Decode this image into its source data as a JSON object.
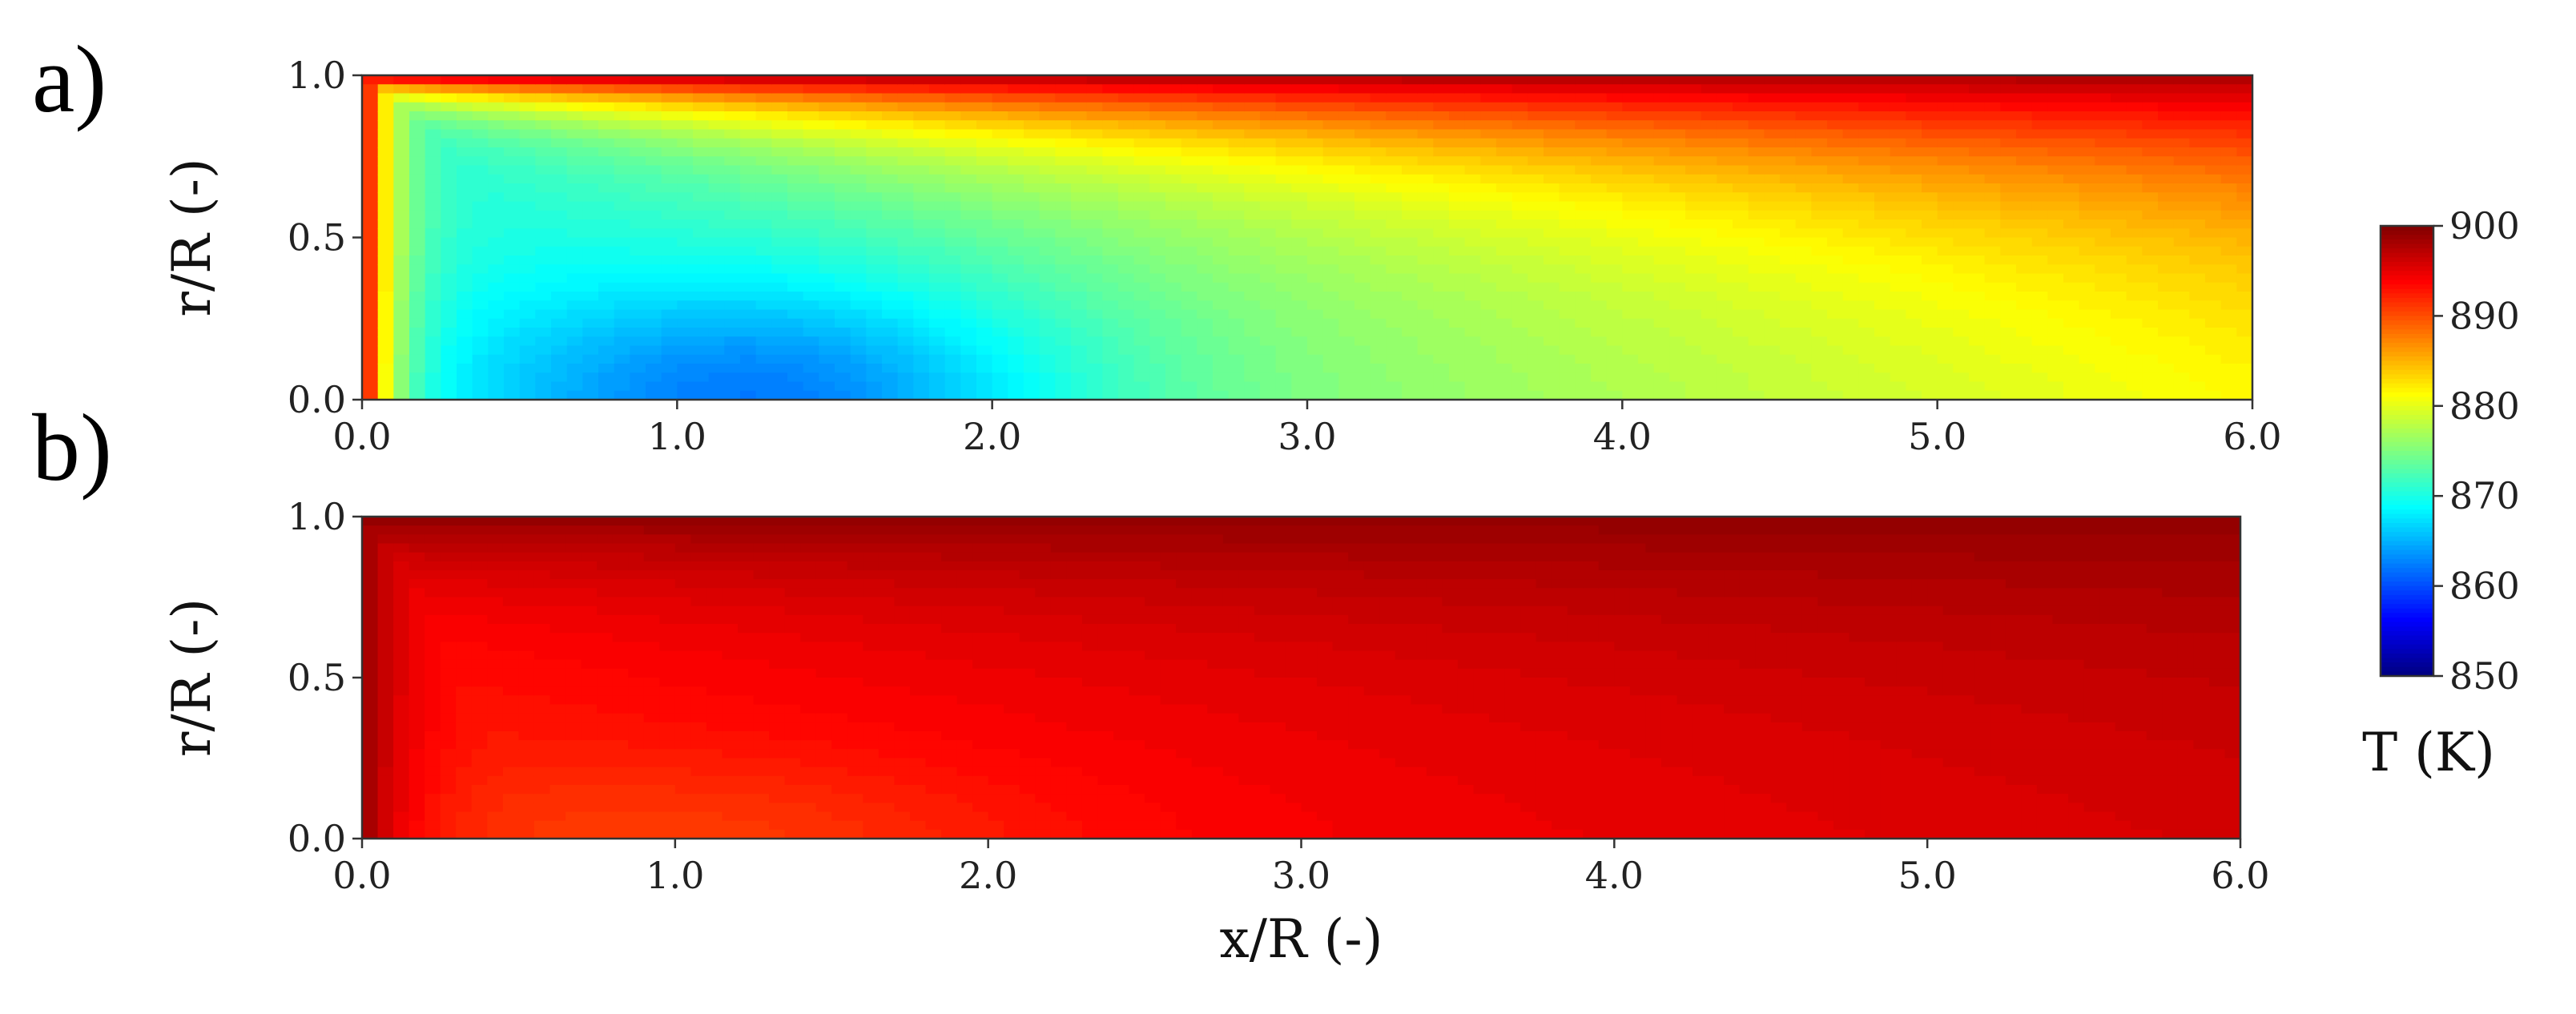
{
  "panels": [
    {
      "label": "a)"
    },
    {
      "label": "b)"
    }
  ],
  "chart_data": [
    {
      "type": "heatmap",
      "panel": "a)",
      "xlabel": "",
      "ylabel": "r/R (-)",
      "xlim": [
        0.0,
        6.0
      ],
      "ylim": [
        0.0,
        1.0
      ],
      "xticks": [
        "0.0",
        "1.0",
        "2.0",
        "3.0",
        "4.0",
        "5.0",
        "6.0"
      ],
      "yticks": [
        "0.0",
        "0.5",
        "1.0"
      ],
      "colormap": "jet",
      "value_range": [
        850,
        900
      ],
      "cold_spot": {
        "x": 1.3,
        "r": 0.0,
        "T": 866
      },
      "approx_values": {
        "wall_r1": 898,
        "inlet_x0": 898,
        "centerline_x2": 868,
        "centerline_x4": 877,
        "outlet_centerline_x6": 882
      }
    },
    {
      "type": "heatmap",
      "panel": "b)",
      "xlabel": "x/R (-)",
      "ylabel": "r/R (-)",
      "xlim": [
        0.0,
        6.0
      ],
      "ylim": [
        0.0,
        1.0
      ],
      "xticks": [
        "0.0",
        "1.0",
        "2.0",
        "3.0",
        "4.0",
        "5.0",
        "6.0"
      ],
      "yticks": [
        "0.0",
        "0.5",
        "1.0"
      ],
      "colormap": "jet",
      "value_range": [
        850,
        900
      ],
      "cold_spot": {
        "x": 1.1,
        "r": 0.0,
        "T": 891
      },
      "approx_values": {
        "wall_r1": 899,
        "inlet_x0": 899,
        "centerline_x2": 892.5,
        "centerline_x4": 894,
        "outlet_centerline_x6": 895
      }
    }
  ],
  "colorbar": {
    "ticks": [
      "850",
      "860",
      "870",
      "880",
      "890",
      "900"
    ],
    "range": [
      850,
      900
    ],
    "label": "T (K)"
  }
}
